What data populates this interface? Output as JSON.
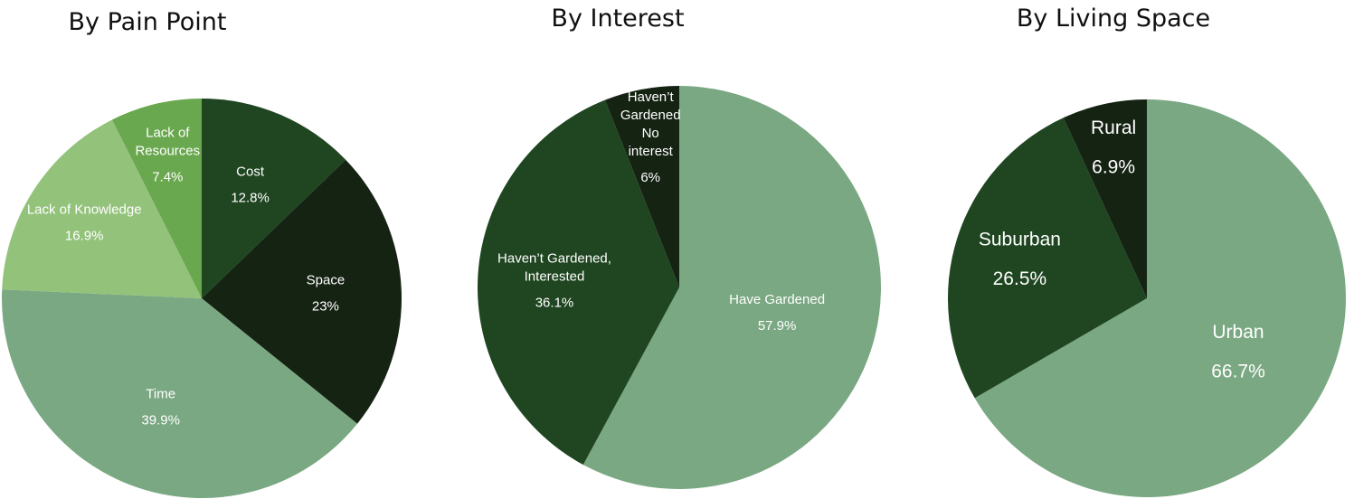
{
  "chart_data": [
    {
      "type": "pie",
      "title": "By Pain Point",
      "slices": [
        {
          "label": [
            "Cost"
          ],
          "value": 12.8,
          "value_label": "12.8%",
          "color": "#1f4620"
        },
        {
          "label": [
            "Space"
          ],
          "value": 23,
          "value_label": "23%",
          "color": "#152313"
        },
        {
          "label": [
            "Time"
          ],
          "value": 39.9,
          "value_label": "39.9%",
          "color": "#7aa882"
        },
        {
          "label": [
            "Lack of Knowledge"
          ],
          "value": 16.9,
          "value_label": "16.9%",
          "color": "#93c27b"
        },
        {
          "label": [
            "Lack of",
            "Resources"
          ],
          "value": 7.4,
          "value_label": "7.4%",
          "color": "#6aa84f"
        }
      ]
    },
    {
      "type": "pie",
      "title": "By Interest",
      "slices": [
        {
          "label": [
            "Have Gardened"
          ],
          "value": 57.9,
          "value_label": "57.9%",
          "color": "#7aa882"
        },
        {
          "label": [
            "Haven’t Gardened,",
            "Interested"
          ],
          "value": 36.1,
          "value_label": "36.1%",
          "color": "#1f4620"
        },
        {
          "label": [
            "Haven’t",
            "Gardened",
            "No",
            "interest"
          ],
          "value": 6,
          "value_label": "6%",
          "color": "#152313"
        }
      ]
    },
    {
      "type": "pie",
      "title": "By Living Space",
      "slices": [
        {
          "label": [
            "Urban"
          ],
          "value": 66.7,
          "value_label": "66.7%",
          "color": "#7aa882"
        },
        {
          "label": [
            "Suburban"
          ],
          "value": 26.5,
          "value_label": "26.5%",
          "color": "#1f4620"
        },
        {
          "label": [
            "Rural"
          ],
          "value": 6.9,
          "value_label": "6.9%",
          "color": "#152313"
        }
      ]
    }
  ]
}
